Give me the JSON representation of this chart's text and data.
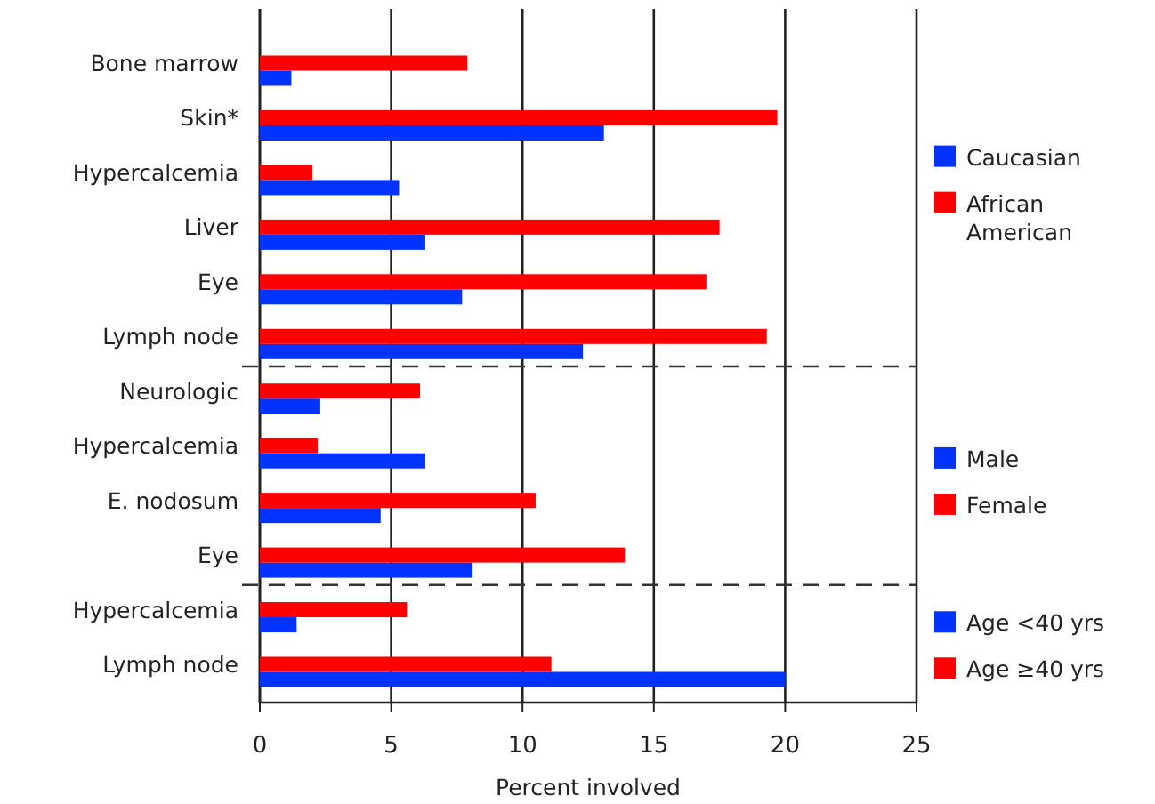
{
  "chart_data": {
    "type": "bar",
    "orientation": "horizontal",
    "xlabel": "Percent involved",
    "categories": [
      "Bone marrow",
      "Skin*",
      "Hypercalcemia",
      "Liver",
      "Eye",
      "Lymph node",
      "Neurologic",
      "Hypercalcemia",
      "E. nodosum",
      "Eye",
      "Hypercalcemia",
      "Lymph node"
    ],
    "series": [
      {
        "name": "Caucasian",
        "color": "#0033ff",
        "values": [
          1.2,
          13.1,
          5.3,
          6.3,
          7.7,
          12.3,
          null,
          null,
          null,
          null,
          null,
          null
        ]
      },
      {
        "name": "African American",
        "color": "#ff0000",
        "values": [
          7.9,
          19.7,
          2.0,
          17.5,
          17.0,
          19.3,
          null,
          null,
          null,
          null,
          null,
          null
        ]
      },
      {
        "name": "Male",
        "color": "#0033ff",
        "values": [
          null,
          null,
          null,
          null,
          null,
          null,
          2.3,
          6.3,
          4.6,
          8.1,
          null,
          null
        ]
      },
      {
        "name": "Female",
        "color": "#ff0000",
        "values": [
          null,
          null,
          null,
          null,
          null,
          null,
          6.1,
          2.2,
          10.5,
          13.9,
          null,
          null
        ]
      },
      {
        "name": "Age <40 yrs",
        "color": "#0033ff",
        "values": [
          null,
          null,
          null,
          null,
          null,
          null,
          null,
          null,
          null,
          null,
          1.4,
          20.0
        ]
      },
      {
        "name": "Age ≥40 yrs",
        "color": "#ff0000",
        "values": [
          null,
          null,
          null,
          null,
          null,
          null,
          null,
          null,
          null,
          null,
          5.6,
          11.1
        ]
      }
    ],
    "xlim": [
      0,
      25
    ],
    "xticks": [
      0,
      5,
      10,
      15,
      20,
      25
    ],
    "grid": "x",
    "legend": "right"
  }
}
